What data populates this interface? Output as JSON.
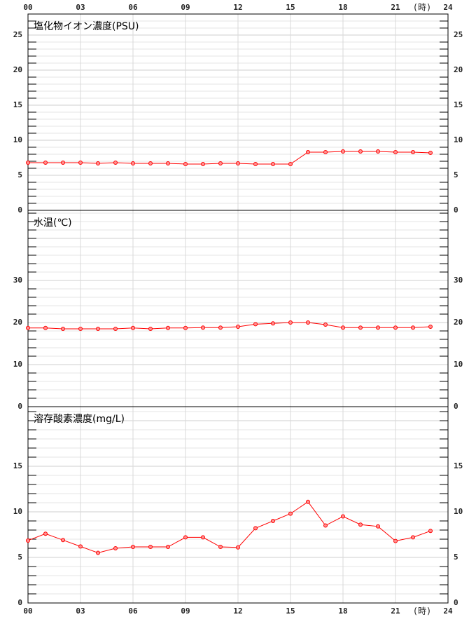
{
  "chart_data": [
    {
      "type": "line",
      "title": "塩化物イオン濃度(PSU)",
      "xlabel": "(時)",
      "x": [
        0,
        1,
        2,
        3,
        4,
        5,
        6,
        7,
        8,
        9,
        10,
        11,
        12,
        13,
        14,
        15,
        16,
        17,
        18,
        19,
        20,
        21,
        22,
        23
      ],
      "xlim": [
        0,
        24
      ],
      "xticks": [
        {
          "value": 0,
          "label": "00"
        },
        {
          "value": 3,
          "label": "03"
        },
        {
          "value": 6,
          "label": "06"
        },
        {
          "value": 9,
          "label": "09"
        },
        12,
        15,
        18,
        21,
        24
      ],
      "ylim": [
        0,
        28
      ],
      "yticks": [
        0,
        5,
        10,
        15,
        20,
        25
      ],
      "grid": true,
      "series": [
        {
          "color": "#ff0000",
          "values": [
            6.8,
            6.8,
            6.8,
            6.8,
            6.7,
            6.8,
            6.7,
            6.7,
            6.7,
            6.6,
            6.6,
            6.7,
            6.7,
            6.6,
            6.6,
            6.6,
            8.3,
            8.3,
            8.4,
            8.4,
            8.4,
            8.3,
            8.3,
            8.2
          ]
        }
      ]
    },
    {
      "type": "line",
      "title": "水温(℃)",
      "x": [
        0,
        1,
        2,
        3,
        4,
        5,
        6,
        7,
        8,
        9,
        10,
        11,
        12,
        13,
        14,
        15,
        16,
        17,
        18,
        19,
        20,
        21,
        22,
        23
      ],
      "xlim": [
        0,
        24
      ],
      "ylim": [
        0,
        46.67
      ],
      "yticks": [
        0,
        10,
        20,
        30
      ],
      "grid": true,
      "series": [
        {
          "color": "#ff0000",
          "values": [
            18.7,
            18.7,
            18.5,
            18.5,
            18.5,
            18.5,
            18.7,
            18.5,
            18.7,
            18.7,
            18.8,
            18.8,
            19.0,
            19.6,
            19.8,
            20.0,
            20.0,
            19.5,
            18.8,
            18.8,
            18.8,
            18.8,
            18.8,
            19.0
          ]
        }
      ]
    },
    {
      "type": "line",
      "title": "溶存酸素濃度(mg/L)",
      "xlabel": "(時)",
      "x": [
        0,
        1,
        2,
        3,
        4,
        5,
        6,
        7,
        8,
        9,
        10,
        11,
        12,
        13,
        14,
        15,
        16,
        17,
        18,
        19,
        20,
        21,
        22,
        23
      ],
      "xlim": [
        0,
        24
      ],
      "xticks": [
        {
          "value": 0,
          "label": "00"
        },
        {
          "value": 3,
          "label": "03"
        },
        {
          "value": 6,
          "label": "06"
        },
        {
          "value": 9,
          "label": "09"
        },
        12,
        15,
        18,
        21,
        24
      ],
      "ylim": [
        0,
        21.54
      ],
      "yticks": [
        0,
        5,
        10,
        15
      ],
      "grid": true,
      "series": [
        {
          "color": "#ff0000",
          "values": [
            6.85,
            7.6,
            6.9,
            6.2,
            5.5,
            6.0,
            6.15,
            6.15,
            6.15,
            7.2,
            7.2,
            6.15,
            6.1,
            8.2,
            9.0,
            9.8,
            11.1,
            8.5,
            9.5,
            8.6,
            8.4,
            6.8,
            7.2,
            7.9
          ]
        }
      ]
    }
  ]
}
